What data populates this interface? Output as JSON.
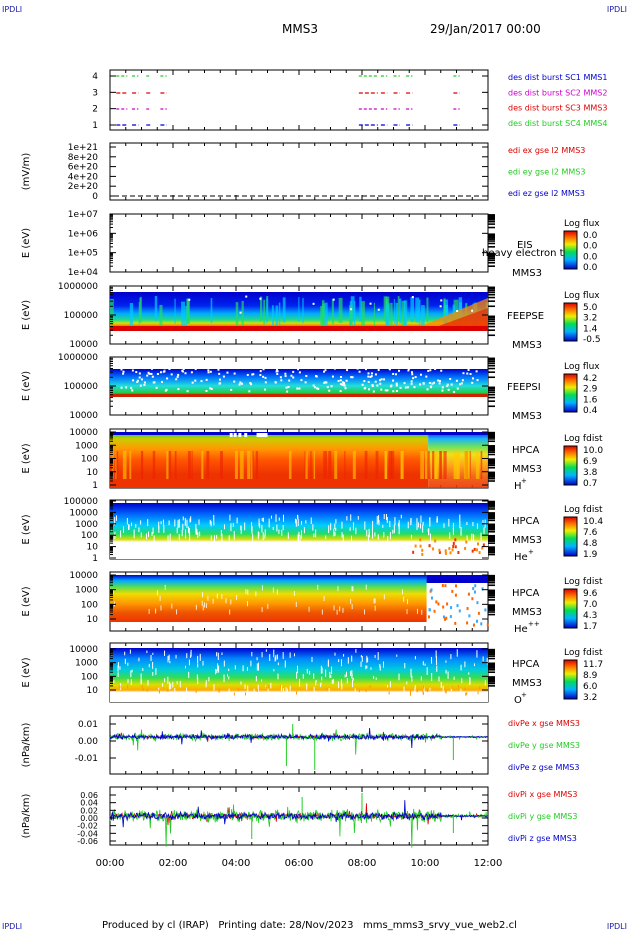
{
  "corners": {
    "tl": "IPDLI",
    "tr": "IPDLI",
    "bl": "IPDLI",
    "br": "IPDLI"
  },
  "header": {
    "spacecraft": "MMS3",
    "date": "29/Jan/2017 00:00"
  },
  "footer": {
    "text": "Produced by cl (IRAP)   Printing date: 28/Nov/2023   mms_mms3_srvy_vue_web2.cl"
  },
  "time_axis": [
    "00:00",
    "02:00",
    "04:00",
    "06:00",
    "08:00",
    "10:00",
    "12:00"
  ],
  "colors": {
    "red": "#dd0000",
    "green": "#22cc22",
    "blue": "#0000cc",
    "magenta": "#cc00cc"
  },
  "panels": {
    "burst": {
      "yticks": [
        "4",
        "3",
        "2",
        "1"
      ],
      "labels": [
        {
          "text": "des dist burst SC1 MMS1",
          "color": "#0000cc"
        },
        {
          "text": "des dist burst SC2 MMS2",
          "color": "#cc00cc"
        },
        {
          "text": "des dist burst SC3 MMS3",
          "color": "#dd0000"
        },
        {
          "text": "des dist burst SC4 MMS4",
          "color": "#22cc22"
        }
      ]
    },
    "edi": {
      "ylabel": "(mV/m)",
      "yticks": [
        "1e+21",
        "8e+20",
        "6e+20",
        "4e+20",
        "2e+20",
        "0"
      ],
      "labels": [
        {
          "text": "edi ex gse l2 MMS3",
          "color": "#dd0000"
        },
        {
          "text": "edi ey gse l2 MMS3",
          "color": "#22cc22"
        },
        {
          "text": "edi ez gse l2 MMS3",
          "color": "#0000cc"
        }
      ]
    },
    "eis": {
      "ylabel": "E (eV)",
      "yticks": [
        "1e+07",
        "1e+06",
        "1e+05",
        "1e+04"
      ],
      "inst": "EIS",
      "sc": "MMS3",
      "overlay": "heavy electron to",
      "cbar_title": "Log flux",
      "cbar_ticks": [
        "0.0",
        "0.0",
        "0.0",
        "0.0"
      ]
    },
    "feepse": {
      "ylabel": "E (eV)",
      "yticks": [
        "1000000",
        "100000",
        "10000"
      ],
      "inst": "FEEPSE",
      "sc": "MMS3",
      "cbar_title": "Log flux",
      "cbar_ticks": [
        "5.0",
        "3.2",
        "1.4",
        "-0.5"
      ]
    },
    "feepsi": {
      "ylabel": "E (eV)",
      "yticks": [
        "1000000",
        "100000",
        "10000"
      ],
      "inst": "FEEPSI",
      "sc": "MMS3",
      "cbar_title": "Log flux",
      "cbar_ticks": [
        "4.2",
        "2.9",
        "1.6",
        "0.4"
      ]
    },
    "hpca_h": {
      "ylabel": "E (eV)",
      "yticks": [
        "10000",
        "1000",
        "100",
        "10",
        "1"
      ],
      "inst": "HPCA",
      "sc": "MMS3",
      "species": "H",
      "charge": "+",
      "cbar_title": "Log fdist",
      "cbar_ticks": [
        "10.0",
        "6.9",
        "3.8",
        "0.7"
      ]
    },
    "hpca_he1": {
      "ylabel": "E (eV)",
      "yticks": [
        "100000",
        "10000",
        "1000",
        "100",
        "10",
        "1"
      ],
      "inst": "HPCA",
      "sc": "MMS3",
      "species": "He",
      "charge": "+",
      "cbar_title": "Log fdist",
      "cbar_ticks": [
        "10.4",
        "7.6",
        "4.8",
        "1.9"
      ]
    },
    "hpca_he2": {
      "ylabel": "E (eV)",
      "yticks": [
        "10000",
        "1000",
        "100",
        "10"
      ],
      "inst": "HPCA",
      "sc": "MMS3",
      "species": "He",
      "charge": "++",
      "cbar_title": "Log fdist",
      "cbar_ticks": [
        "9.6",
        "7.0",
        "4.3",
        "1.7"
      ]
    },
    "hpca_o": {
      "ylabel": "E (eV)",
      "yticks": [
        "10000",
        "1000",
        "100",
        "10"
      ],
      "inst": "HPCA",
      "sc": "MMS3",
      "species": "O",
      "charge": "+",
      "cbar_title": "Log fdist",
      "cbar_ticks": [
        "11.7",
        "8.9",
        "6.0",
        "3.2"
      ]
    },
    "divpe": {
      "ylabel": "(nPa/km)",
      "yticks": [
        "0.01",
        "0.00",
        "-0.01"
      ],
      "labels": [
        {
          "text": "divPe x gse MMS3",
          "color": "#dd0000"
        },
        {
          "text": "divPe y gse MMS3",
          "color": "#22cc22"
        },
        {
          "text": "divPe z gse MMS3",
          "color": "#0000cc"
        }
      ]
    },
    "divpi": {
      "ylabel": "(nPa/km)",
      "yticks": [
        "0.06",
        "0.04",
        "0.02",
        "0.00",
        "-0.02",
        "-0.04",
        "-0.06"
      ],
      "labels": [
        {
          "text": "divPi x gse MMS3",
          "color": "#dd0000"
        },
        {
          "text": "divPi y gse MMS3",
          "color": "#22cc22"
        },
        {
          "text": "divPi z gse MMS3",
          "color": "#0000cc"
        }
      ]
    }
  },
  "chart_data": {
    "type": "heatmap",
    "x_range": [
      "00:00",
      "12:00"
    ],
    "panels": [
      {
        "name": "burst",
        "type": "line",
        "ylim": [
          0.5,
          4.5
        ]
      },
      {
        "name": "edi",
        "ylim": [
          0,
          1e+21
        ]
      },
      {
        "name": "EIS",
        "scale": "log",
        "ylim": [
          10000.0,
          10000000.0
        ]
      },
      {
        "name": "FEEPSE",
        "scale": "log",
        "ylim": [
          10000.0,
          1000000.0
        ]
      },
      {
        "name": "FEEPSI",
        "scale": "log",
        "ylim": [
          10000.0,
          1000000.0
        ]
      },
      {
        "name": "HPCA H+",
        "scale": "log",
        "ylim": [
          1,
          10000.0
        ]
      },
      {
        "name": "HPCA He+",
        "scale": "log",
        "ylim": [
          1,
          100000.0
        ]
      },
      {
        "name": "HPCA He++",
        "scale": "log",
        "ylim": [
          1,
          10000.0
        ]
      },
      {
        "name": "HPCA O+",
        "scale": "log",
        "ylim": [
          1,
          10000.0
        ]
      },
      {
        "name": "divPe",
        "type": "line",
        "ylim": [
          -0.02,
          0.015
        ]
      },
      {
        "name": "divPi",
        "type": "line",
        "ylim": [
          -0.07,
          0.07
        ]
      }
    ]
  }
}
